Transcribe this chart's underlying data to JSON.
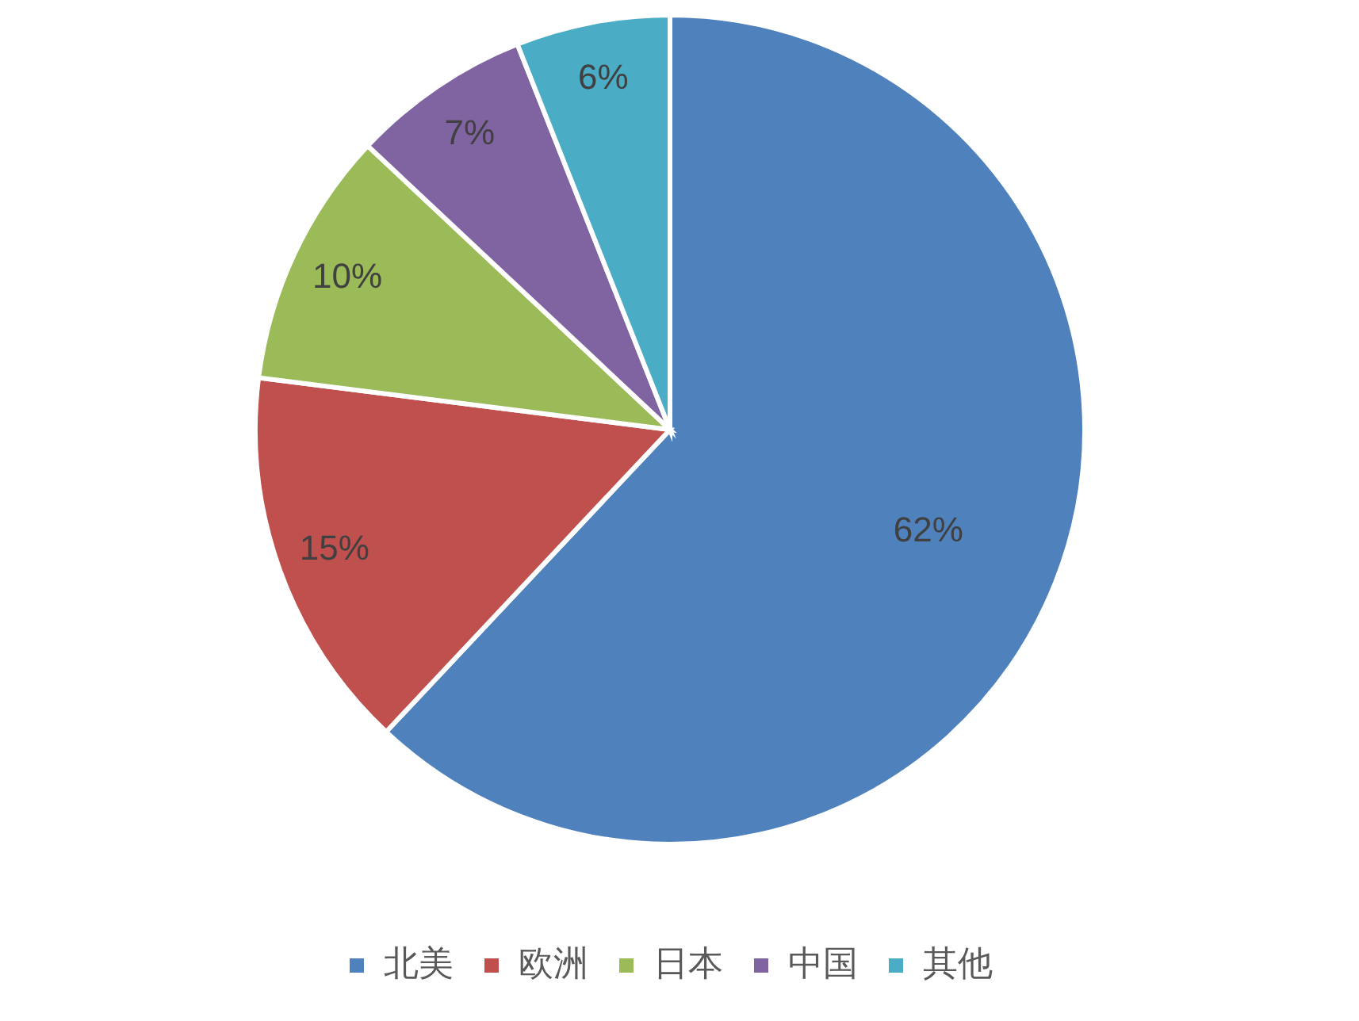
{
  "chart_data": {
    "type": "pie",
    "categories": [
      "北美",
      "欧洲",
      "日本",
      "中国",
      "其他"
    ],
    "values": [
      62,
      15,
      10,
      7,
      6
    ],
    "colors": [
      "#4f81bd",
      "#c0504d",
      "#9bbb59",
      "#8064a2",
      "#4bacc6"
    ],
    "value_labels": [
      "62%",
      "15%",
      "10%",
      "7%",
      "6%"
    ],
    "legend": "bottom"
  }
}
